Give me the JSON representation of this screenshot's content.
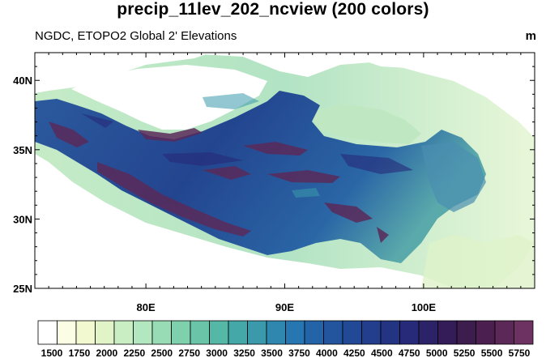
{
  "title": "precip_11lev_202_ncview (200 colors)",
  "subtitle": "NGDC, ETOPO2 Global 2' Elevations",
  "units": "m",
  "map": {
    "lon_range": [
      72,
      108
    ],
    "lat_range": [
      25,
      42
    ],
    "lat_ticks": [
      {
        "value": 40,
        "label": "40N"
      },
      {
        "value": 35,
        "label": "35N"
      },
      {
        "value": 30,
        "label": "30N"
      },
      {
        "value": 25,
        "label": "25N"
      }
    ],
    "lon_ticks": [
      {
        "value": 80,
        "label": "80E"
      },
      {
        "value": 90,
        "label": "90E"
      },
      {
        "value": 100,
        "label": "100E"
      }
    ],
    "variable": "elevation"
  },
  "colorbar": {
    "labels": [
      "1500",
      "1750",
      "2000",
      "2250",
      "2500",
      "2750",
      "3000",
      "3250",
      "3500",
      "3750",
      "4000",
      "4250",
      "4500",
      "4750",
      "5000",
      "5250",
      "5500",
      "5750"
    ],
    "colors": [
      "#ffffff",
      "#fbfde4",
      "#f2f9d0",
      "#e1f4c8",
      "#c9eec4",
      "#b2e7c0",
      "#97dcb5",
      "#7fd0ad",
      "#69c4a8",
      "#55b7a6",
      "#45a8a8",
      "#3a99ab",
      "#2f87b0",
      "#2676b2",
      "#2364a9",
      "#22559e",
      "#224996",
      "#223e8c",
      "#233482",
      "#272a78",
      "#2c2268",
      "#331c58",
      "#3d1c4e",
      "#4b2050",
      "#5c2858",
      "#6e3262"
    ]
  }
}
